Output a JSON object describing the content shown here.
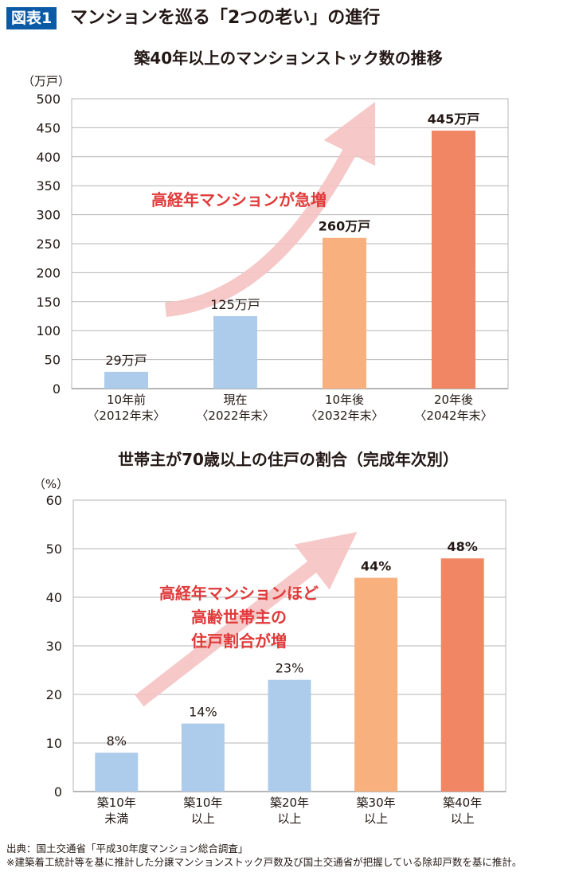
{
  "figure": {
    "badge": "図表1",
    "title": "マンションを巡る「2つの老い」の進行"
  },
  "colors": {
    "badge_bg": "#0b5aa6",
    "blue": "#adcceb",
    "orange_light": "#f7b07e",
    "orange": "#f08664",
    "annotation_red": "#e03a3a",
    "arrow": "#f6c3c3",
    "grid": "#b5b5b5"
  },
  "chart_data": [
    {
      "type": "bar",
      "title": "築40年以上のマンションストック数の推移",
      "unit_label": "（万戸）",
      "categories": [
        [
          "10年前",
          "〈2012年末〉"
        ],
        [
          "現在",
          "〈2022年末〉"
        ],
        [
          "10年後",
          "〈2032年末〉"
        ],
        [
          "20年後",
          "〈2042年末〉"
        ]
      ],
      "values": [
        29,
        125,
        260,
        445
      ],
      "value_labels": [
        "29万戸",
        "125万戸",
        "260万戸",
        "445万戸"
      ],
      "bar_colors": [
        "#adcceb",
        "#adcceb",
        "#f7b07e",
        "#f08664"
      ],
      "bold_labels": [
        false,
        false,
        true,
        true
      ],
      "yticks": [
        0,
        50,
        100,
        150,
        200,
        250,
        300,
        350,
        400,
        450,
        500
      ],
      "ylim": [
        0,
        500
      ],
      "grid": true,
      "annotation": [
        "高経年マンションが急増"
      ]
    },
    {
      "type": "bar",
      "title": "世帯主が70歳以上の住戸の割合（完成年次別）",
      "unit_label": "（%）",
      "categories": [
        [
          "築10年",
          "未満"
        ],
        [
          "築10年",
          "以上"
        ],
        [
          "築20年",
          "以上"
        ],
        [
          "築30年",
          "以上"
        ],
        [
          "築40年",
          "以上"
        ]
      ],
      "values": [
        8,
        14,
        23,
        44,
        48
      ],
      "value_labels": [
        "8%",
        "14%",
        "23%",
        "44%",
        "48%"
      ],
      "bar_colors": [
        "#adcceb",
        "#adcceb",
        "#adcceb",
        "#f7b07e",
        "#f08664"
      ],
      "bold_labels": [
        false,
        false,
        false,
        true,
        true
      ],
      "yticks": [
        0,
        10,
        20,
        30,
        40,
        50,
        60
      ],
      "ylim": [
        0,
        60
      ],
      "grid": true,
      "annotation": [
        "高経年マンションほど",
        "高齢世帯主の",
        "住戸割合が増"
      ]
    }
  ],
  "footnotes": {
    "source": "出典：国土交通省「平成30年度マンション総合調査」",
    "note": "※建築着工統計等を基に推計した分譲マンションストック戸数及び国土交通省が把握している除却戸数を基に推計。"
  }
}
